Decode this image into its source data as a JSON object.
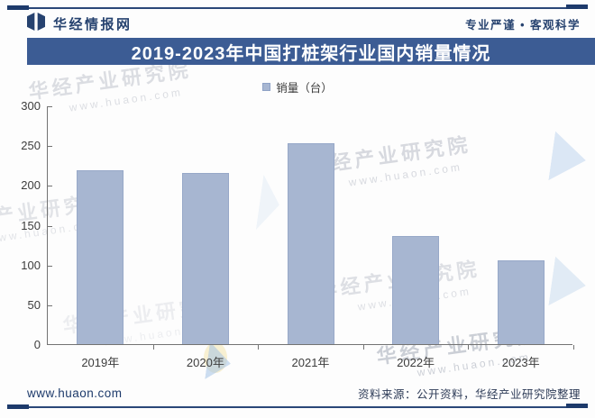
{
  "header": {
    "brand": "华经情报网",
    "slogan": "专业严谨 • 客观科学"
  },
  "title_bar": {
    "title": "2019-2023年中国打桩架行业国内销量情况"
  },
  "legend": {
    "label": "销量（台）"
  },
  "chart_data": {
    "type": "bar",
    "title": "2019-2023年中国打桩架行业国内销量情况",
    "categories": [
      "2019年",
      "2020年",
      "2021年",
      "2022年",
      "2023年"
    ],
    "series": [
      {
        "name": "销量（台）",
        "values": [
          219,
          215,
          252,
          136,
          105
        ]
      }
    ],
    "xlabel": "",
    "ylabel": "",
    "ylim": [
      0,
      300
    ],
    "yticks": [
      0,
      50,
      100,
      150,
      200,
      250,
      300
    ],
    "grid": false,
    "legend_position": "top-center",
    "bar_color": "#a7b6d1"
  },
  "watermark": {
    "line1": "华经产业研究院",
    "line2": "www.huaon.com"
  },
  "footer": {
    "site": "www.huaon.com",
    "source": "资料来源：公开资料，华经产业研究院整理"
  },
  "colors": {
    "accent_navy": "#1d3a6b",
    "title_bar_bg": "#3c5c94",
    "bar_fill": "#a7b6d1",
    "bar_border": "#97a8c8",
    "watermark_gray": "#c9ccd4"
  }
}
